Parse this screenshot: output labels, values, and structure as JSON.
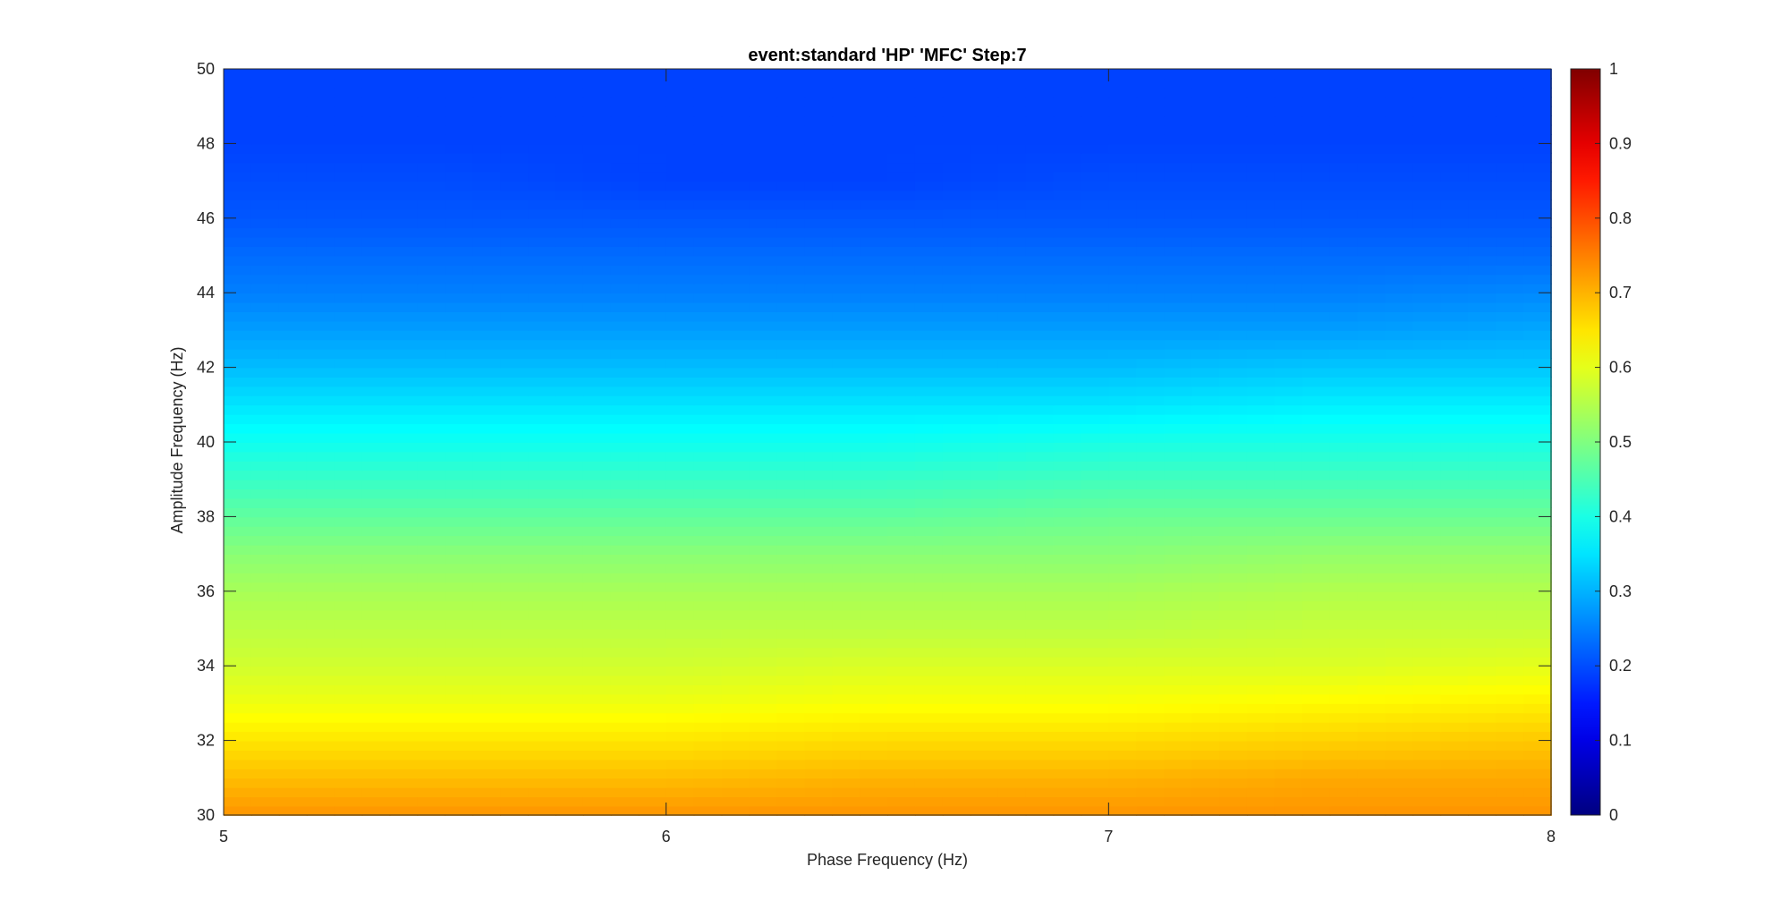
{
  "chart_data": {
    "type": "heatmap",
    "title": "event:standard 'HP'  'MFC' Step:7",
    "xlabel": "Phase Frequency (Hz)",
    "ylabel": "Amplitude Frequency (Hz)",
    "xlim": [
      5,
      8
    ],
    "ylim": [
      30,
      50
    ],
    "x_ticks": [
      "5",
      "6",
      "7",
      "8"
    ],
    "y_ticks": [
      "30",
      "32",
      "34",
      "36",
      "38",
      "40",
      "42",
      "44",
      "46",
      "48",
      "50"
    ],
    "colormap": "jet",
    "clim": [
      0,
      1
    ],
    "colorbar_ticks": [
      "0",
      "0.1",
      "0.2",
      "0.3",
      "0.4",
      "0.5",
      "0.6",
      "0.7",
      "0.8",
      "0.9",
      "1"
    ],
    "x": [
      5,
      5.5,
      6,
      6.5,
      7,
      7.5,
      8
    ],
    "y": [
      30,
      31,
      32,
      33,
      34,
      35,
      36,
      37,
      38,
      39,
      40,
      41,
      42,
      43,
      44,
      45,
      46,
      47,
      48,
      49,
      50
    ],
    "z": [
      [
        0.73,
        0.73,
        0.73,
        0.73,
        0.73,
        0.73,
        0.73
      ],
      [
        0.69,
        0.69,
        0.69,
        0.7,
        0.7,
        0.71,
        0.71
      ],
      [
        0.65,
        0.65,
        0.65,
        0.66,
        0.66,
        0.67,
        0.68
      ],
      [
        0.61,
        0.61,
        0.61,
        0.62,
        0.62,
        0.63,
        0.64
      ],
      [
        0.58,
        0.58,
        0.58,
        0.59,
        0.59,
        0.59,
        0.6
      ],
      [
        0.56,
        0.56,
        0.56,
        0.56,
        0.56,
        0.57,
        0.57
      ],
      [
        0.54,
        0.54,
        0.54,
        0.54,
        0.54,
        0.55,
        0.55
      ],
      [
        0.51,
        0.51,
        0.51,
        0.51,
        0.51,
        0.52,
        0.52
      ],
      [
        0.47,
        0.47,
        0.47,
        0.47,
        0.48,
        0.48,
        0.48
      ],
      [
        0.43,
        0.43,
        0.43,
        0.43,
        0.44,
        0.44,
        0.44
      ],
      [
        0.39,
        0.39,
        0.39,
        0.39,
        0.4,
        0.4,
        0.4
      ],
      [
        0.35,
        0.35,
        0.35,
        0.35,
        0.35,
        0.36,
        0.36
      ],
      [
        0.31,
        0.31,
        0.31,
        0.31,
        0.31,
        0.32,
        0.32
      ],
      [
        0.28,
        0.28,
        0.28,
        0.28,
        0.28,
        0.28,
        0.29
      ],
      [
        0.25,
        0.25,
        0.25,
        0.25,
        0.25,
        0.25,
        0.26
      ],
      [
        0.23,
        0.23,
        0.23,
        0.23,
        0.23,
        0.23,
        0.23
      ],
      [
        0.21,
        0.21,
        0.21,
        0.21,
        0.21,
        0.21,
        0.21
      ],
      [
        0.2,
        0.2,
        0.19,
        0.19,
        0.2,
        0.2,
        0.2
      ],
      [
        0.19,
        0.19,
        0.19,
        0.19,
        0.19,
        0.19,
        0.19
      ],
      [
        0.19,
        0.19,
        0.19,
        0.19,
        0.19,
        0.19,
        0.19
      ],
      [
        0.19,
        0.19,
        0.19,
        0.19,
        0.19,
        0.19,
        0.19
      ]
    ]
  }
}
